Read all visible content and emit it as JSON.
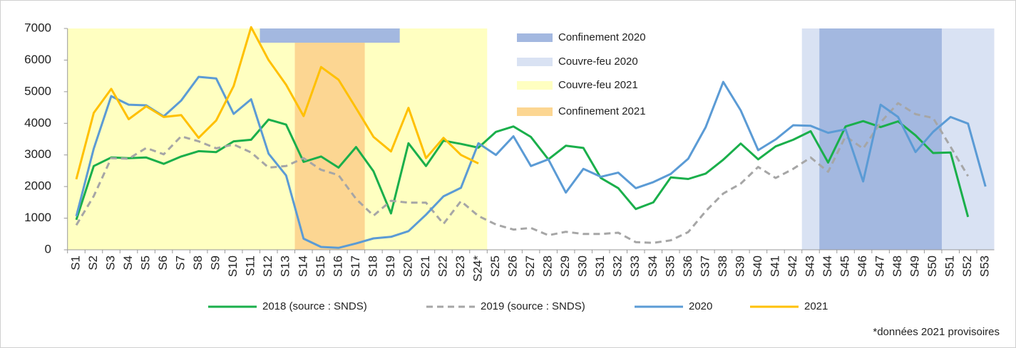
{
  "chart_data": {
    "type": "line",
    "categories": [
      "S1",
      "S2",
      "S3",
      "S4",
      "S5",
      "S6",
      "S7",
      "S8",
      "S9",
      "S10",
      "S11",
      "S12",
      "S13",
      "S14",
      "S15",
      "S16",
      "S17",
      "S18",
      "S19",
      "S20",
      "S21",
      "S22",
      "S23",
      "S24*",
      "S25",
      "S26",
      "S27",
      "S28",
      "S29",
      "S30",
      "S31",
      "S32",
      "S33",
      "S34",
      "S35",
      "S36",
      "S37",
      "S38",
      "S39",
      "S40",
      "S41",
      "S42",
      "S43",
      "S44",
      "S45",
      "S46",
      "S47",
      "S48",
      "S49",
      "S50",
      "S51",
      "S52",
      "S53"
    ],
    "ylim": [
      0,
      7000
    ],
    "yticks": [
      0,
      1000,
      2000,
      3000,
      4000,
      5000,
      6000,
      7000
    ],
    "series": [
      {
        "name": "2018 (source : SNDS)",
        "color": "#1aaf4b",
        "dash": false,
        "values": [
          950,
          2650,
          2920,
          2900,
          2920,
          2720,
          2950,
          3120,
          3090,
          3430,
          3480,
          4120,
          3960,
          2780,
          2950,
          2600,
          3250,
          2480,
          1150,
          3370,
          2650,
          3450,
          3350,
          3230,
          3730,
          3900,
          3570,
          2860,
          3290,
          3220,
          2270,
          1950,
          1290,
          1500,
          2290,
          2240,
          2410,
          2850,
          3360,
          2860,
          3270,
          3480,
          3750,
          2760,
          3900,
          4070,
          3880,
          4060,
          3620,
          3060,
          3080,
          1040,
          null
        ]
      },
      {
        "name": "2019 (source : SNDS)",
        "color": "#a6a6a6",
        "dash": true,
        "values": [
          780,
          1700,
          2900,
          2880,
          3220,
          3020,
          3590,
          3430,
          3210,
          3330,
          3080,
          2600,
          2650,
          2900,
          2530,
          2360,
          1610,
          1080,
          1550,
          1490,
          1490,
          820,
          1540,
          1070,
          800,
          640,
          690,
          460,
          570,
          500,
          500,
          540,
          240,
          220,
          300,
          560,
          1220,
          1780,
          2090,
          2620,
          2270,
          2560,
          2920,
          2470,
          3590,
          3200,
          4030,
          4640,
          4290,
          4170,
          3260,
          2330,
          null
        ]
      },
      {
        "name": "2020",
        "color": "#5b9bd5",
        "dash": false,
        "values": [
          1060,
          3200,
          4860,
          4590,
          4570,
          4220,
          4720,
          5470,
          5420,
          4300,
          4760,
          3040,
          2350,
          350,
          90,
          60,
          200,
          360,
          410,
          590,
          1110,
          1690,
          1960,
          3370,
          3000,
          3590,
          2650,
          2860,
          1810,
          2560,
          2310,
          2440,
          1950,
          2140,
          2400,
          2880,
          3880,
          5310,
          4410,
          3150,
          3490,
          3940,
          3920,
          3700,
          3810,
          2160,
          4590,
          4200,
          3090,
          3730,
          4200,
          3990,
          2000
        ]
      },
      {
        "name": "2021",
        "color": "#ffc000",
        "dash": false,
        "values": [
          2230,
          4330,
          5090,
          4130,
          4540,
          4200,
          4260,
          3540,
          4090,
          5180,
          7040,
          6000,
          5220,
          4230,
          5780,
          5380,
          4480,
          3570,
          3110,
          4490,
          2900,
          3540,
          3000,
          2730,
          null,
          null,
          null,
          null,
          null,
          null,
          null,
          null,
          null,
          null,
          null,
          null,
          null,
          null,
          null,
          null,
          null,
          null,
          null,
          null,
          null,
          null,
          null,
          null,
          null,
          null,
          null,
          null,
          null
        ]
      }
    ],
    "periods": [
      {
        "name": "Confinement 2020",
        "color": "#a3b8e0",
        "from": "S12",
        "to": "S19",
        "span": [
          6550,
          7000
        ]
      },
      {
        "name": "Couvre-feu 2020",
        "color": "#d9e2f3",
        "from": "S43",
        "to": "S53"
      },
      {
        "name": "Couvre-feu 2021",
        "color": "#ffffc1",
        "from": "S1",
        "to": "S24*"
      },
      {
        "name": "Confinement 2021",
        "color": "#fcd692",
        "from": "S14",
        "to": "S17"
      },
      {
        "name": "Confinement 2020",
        "color": "#a3b8e0",
        "from": "S44",
        "to": "S50"
      }
    ],
    "footnote": "*données 2021 provisoires"
  }
}
